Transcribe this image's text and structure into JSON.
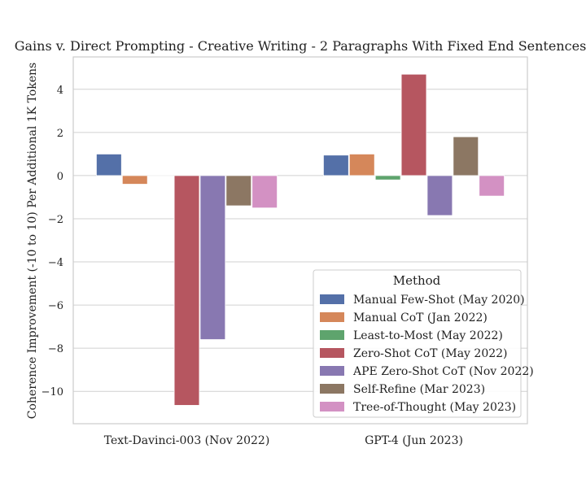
{
  "chart_data": {
    "type": "bar",
    "title": "Gains v. Direct Prompting - Creative Writing - 2 Paragraphs With Fixed End Sentences",
    "xlabel": "",
    "ylabel": "Coherence Improvement (-10 to 10) Per Additional 1K Tokens",
    "ylim": [
      -11.5,
      5.5
    ],
    "yticks": [
      4,
      2,
      0,
      -2,
      -4,
      -6,
      -8,
      -10
    ],
    "ytick_labels": [
      "4",
      "2",
      "0",
      "−2",
      "−4",
      "−6",
      "−8",
      "−10"
    ],
    "grid": true,
    "legend_title": "Method",
    "legend_position": "lower-right",
    "categories": [
      "Text-Davinci-003 (Nov 2022)",
      "GPT-4 (Jun 2023)"
    ],
    "series": [
      {
        "name": "Manual Few-Shot (May 2020)",
        "color": "#5470a8",
        "values": [
          1.0,
          0.95
        ]
      },
      {
        "name": "Manual CoT (Jan 2022)",
        "color": "#d5875a",
        "values": [
          -0.4,
          1.0
        ]
      },
      {
        "name": "Least-to-Most (May 2022)",
        "color": "#5ea46d",
        "values": [
          0.0,
          -0.2
        ]
      },
      {
        "name": "Zero-Shot CoT (May 2022)",
        "color": "#b65660",
        "values": [
          -10.65,
          4.7
        ]
      },
      {
        "name": "APE Zero-Shot CoT (Nov 2022)",
        "color": "#8878b1",
        "values": [
          -7.6,
          -1.85
        ]
      },
      {
        "name": "Self-Refine (Mar 2023)",
        "color": "#8c7763",
        "values": [
          -1.4,
          1.8
        ]
      },
      {
        "name": "Tree-of-Thought (May 2023)",
        "color": "#d391c3",
        "values": [
          -1.5,
          -0.95
        ]
      }
    ]
  }
}
